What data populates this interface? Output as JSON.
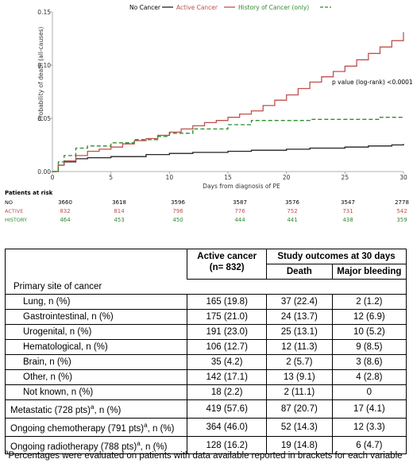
{
  "chart_data": {
    "type": "line",
    "ylabel": "Probability of death (all-causes)",
    "xlabel": "Days from diagnosis of PE",
    "xlim": [
      0,
      30
    ],
    "ylim": [
      0,
      0.15
    ],
    "x_ticks": [
      "0",
      "5",
      "10",
      "15",
      "20",
      "25",
      "30"
    ],
    "y_ticks": [
      "0.00",
      "0.05",
      "0.10",
      "0.15"
    ],
    "annotation": "p value (log-rank) <0.0001",
    "series": [
      {
        "name": "No Cancer",
        "color": "#222222",
        "dash": "solid",
        "x": [
          0,
          0.5,
          1,
          2,
          3,
          5,
          8,
          10,
          12,
          15,
          17,
          20,
          22,
          25,
          27,
          29,
          30
        ],
        "y": [
          0.0,
          0.006,
          0.009,
          0.012,
          0.013,
          0.014,
          0.016,
          0.017,
          0.018,
          0.019,
          0.02,
          0.021,
          0.022,
          0.023,
          0.024,
          0.025,
          0.026
        ]
      },
      {
        "name": "Active Cancer",
        "color": "#c0504d",
        "dash": "solid",
        "x": [
          0,
          0.5,
          1,
          2,
          3,
          4,
          5,
          6,
          7,
          8,
          9,
          10,
          11,
          12,
          13,
          14,
          15,
          16,
          17,
          18,
          19,
          20,
          21,
          22,
          23,
          24,
          25,
          26,
          27,
          28,
          29,
          30
        ],
        "y": [
          0.0,
          0.006,
          0.01,
          0.015,
          0.019,
          0.021,
          0.023,
          0.026,
          0.029,
          0.031,
          0.034,
          0.037,
          0.04,
          0.043,
          0.046,
          0.048,
          0.051,
          0.054,
          0.057,
          0.062,
          0.067,
          0.072,
          0.078,
          0.084,
          0.089,
          0.094,
          0.099,
          0.105,
          0.111,
          0.117,
          0.123,
          0.131
        ]
      },
      {
        "name": "History of Cancer (only)",
        "color": "#2e8b2e",
        "dash": "dashed",
        "x": [
          0,
          0.5,
          1,
          2,
          3,
          5,
          7,
          9,
          10,
          12,
          15,
          17,
          20,
          22,
          25,
          27,
          28,
          30
        ],
        "y": [
          0.0,
          0.009,
          0.015,
          0.022,
          0.024,
          0.027,
          0.03,
          0.033,
          0.036,
          0.04,
          0.044,
          0.048,
          0.048,
          0.049,
          0.049,
          0.049,
          0.051,
          0.052
        ]
      }
    ],
    "risk_table": {
      "title": "Patients at risk",
      "rows": [
        {
          "label": "NO",
          "color": "#000000",
          "values": [
            "3660",
            "3618",
            "3596",
            "3587",
            "3576",
            "3547",
            "2778"
          ]
        },
        {
          "label": "ACTIVE",
          "color": "#c0504d",
          "values": [
            "832",
            "814",
            "796",
            "776",
            "752",
            "731",
            "542"
          ]
        },
        {
          "label": "HISTORY",
          "color": "#2e8b2e",
          "values": [
            "464",
            "453",
            "450",
            "444",
            "441",
            "438",
            "359"
          ]
        }
      ]
    }
  },
  "table": {
    "col_active": "Active cancer\n(n= 832)",
    "col_outcomes": "Study outcomes at 30 days",
    "col_death": "Death",
    "col_bleeding": "Major bleeding",
    "section": "Primary site of cancer",
    "rows": [
      {
        "label": "Lung, n (%)",
        "active": "165 (19.8)",
        "death": "37 (22.4)",
        "bleeding": "2 (1.2)"
      },
      {
        "label": "Gastrointestinal, n (%)",
        "active": "175 (21.0)",
        "death": "24 (13.7)",
        "bleeding": "12 (6.9)"
      },
      {
        "label": "Urogenital, n (%)",
        "active": "191 (23.0)",
        "death": "25 (13.1)",
        "bleeding": "10 (5.2)"
      },
      {
        "label": "Hematological, n (%)",
        "active": "106 (12.7)",
        "death": "12 (11.3)",
        "bleeding": "9 (8.5)"
      },
      {
        "label": "Brain, n (%)",
        "active": "35 (4.2)",
        "death": "2 (5.7)",
        "bleeding": "3 (8.6)"
      },
      {
        "label": "Other, n (%)",
        "active": "142 (17.1)",
        "death": "13 (9.1)",
        "bleeding": "4 (2.8)"
      },
      {
        "label": "Not known, n (%)",
        "active": "18 (2.2)",
        "death": "2 (11.1)",
        "bleeding": "0"
      }
    ],
    "extra_rows": [
      {
        "label": "Metastatic (728 pts)",
        "sup": "a",
        "tail": ", n (%)",
        "active": "419 (57.6)",
        "death": "87 (20.7)",
        "bleeding": "17 (4.1)"
      },
      {
        "label": "Ongoing chemotherapy (791 pts)",
        "sup": "a",
        "tail": ", n (%)",
        "active": "364 (46.0)",
        "death": "52 (14.3)",
        "bleeding": "12 (3.3)"
      },
      {
        "label": "Ongoing radiotherapy (788 pts)",
        "sup": "a",
        "tail": ", n (%)",
        "active": "128 (16.2)",
        "death": "19 (14.8)",
        "bleeding": "6 (4.7)"
      }
    ]
  },
  "footnote": {
    "mark": "a",
    "text": "Percentages were evaluated on patients with data available reported in brackets for each variable"
  }
}
